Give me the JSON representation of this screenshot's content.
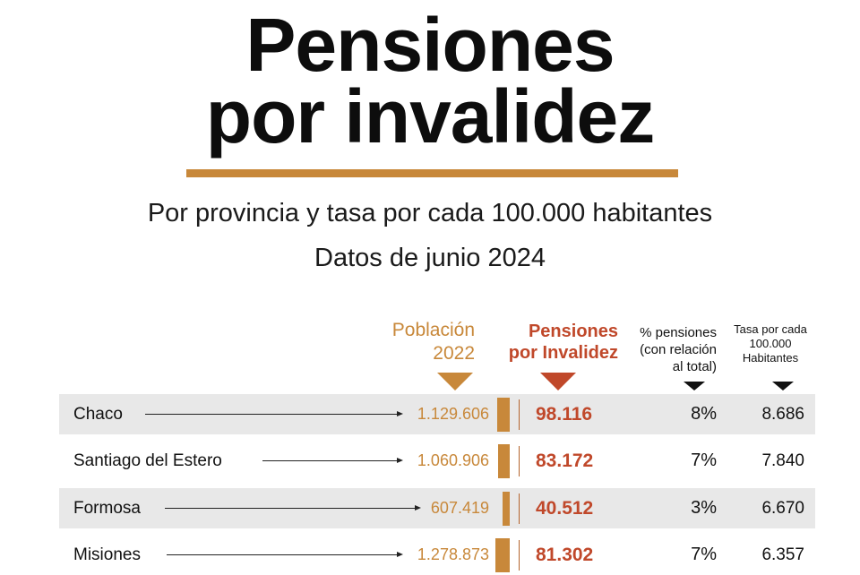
{
  "title_line1": "Pensiones",
  "title_line2": "por invalidez",
  "subtitle_line1": "Por provincia y tasa por cada 100.000 habitantes",
  "subtitle_line2": "Datos de junio 2024",
  "colors": {
    "population": "#c8883a",
    "pensions": "#c0482a",
    "text": "#111111",
    "row_band": "#e8e8e8"
  },
  "chart_data": {
    "type": "table",
    "columns": [
      {
        "line1": "Población",
        "line2": "2022"
      },
      {
        "line1": "Pensiones",
        "line2": "por Invalidez"
      },
      {
        "line1": "% pensiones",
        "line2": "(con relación",
        "line3": "al total)"
      },
      {
        "line1": "Tasa por cada",
        "line2": "100.000",
        "line3": "Habitantes"
      }
    ],
    "rows": [
      {
        "province": "Chaco",
        "population": "1.129.606",
        "pensions": "98.116",
        "percent": "8%",
        "rate": "8.686"
      },
      {
        "province": "Santiago del Estero",
        "population": "1.060.906",
        "pensions": "83.172",
        "percent": "7%",
        "rate": "7.840"
      },
      {
        "province": "Formosa",
        "population": "607.419",
        "pensions": "40.512",
        "percent": "3%",
        "rate": "6.670"
      },
      {
        "province": "Misiones",
        "population": "1.278.873",
        "pensions": "81.302",
        "percent": "7%",
        "rate": "6.357"
      }
    ]
  }
}
